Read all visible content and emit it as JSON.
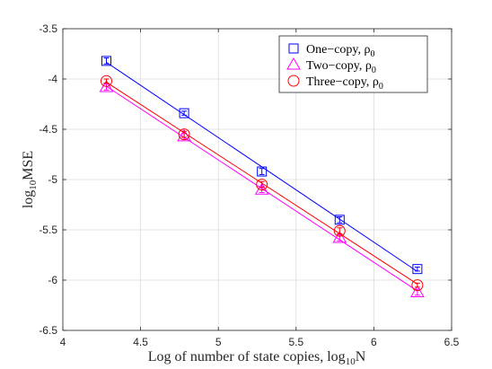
{
  "chart_data": {
    "type": "line",
    "xlabel": "Log of number of state copies, log",
    "xlabel_sub": "10",
    "xlabel_suffix": "N",
    "ylabel": "log",
    "ylabel_sub": "10",
    "ylabel_suffix": "MSE",
    "xlim": [
      4,
      6.5
    ],
    "ylim": [
      -6.5,
      -3.5
    ],
    "xticks": [
      4,
      4.5,
      5,
      5.5,
      6,
      6.5
    ],
    "yticks": [
      -3.5,
      -4,
      -4.5,
      -5,
      -5.5,
      -6,
      -6.5
    ],
    "xtick_labels": [
      "4",
      "4.5",
      "5",
      "5.5",
      "6",
      "6.5"
    ],
    "ytick_labels": [
      "-3.5",
      "-4",
      "-4.5",
      "-5",
      "-5.5",
      "-6",
      "-6.5"
    ],
    "grid": true,
    "legend_position": "top-right",
    "series": [
      {
        "name": "One−copy, ρ",
        "name_sub": "0",
        "marker": "square",
        "color": "#0000ff",
        "x": [
          4.28,
          4.78,
          5.28,
          5.78,
          6.28
        ],
        "y": [
          -3.82,
          -4.34,
          -4.92,
          -5.4,
          -5.89
        ],
        "error": [
          0.03,
          0.02,
          0.03,
          0.03,
          0.02
        ]
      },
      {
        "name": "Two−copy, ρ",
        "name_sub": "0",
        "marker": "triangle",
        "color": "#ff00ff",
        "x": [
          4.28,
          4.78,
          5.28,
          5.78,
          6.28
        ],
        "y": [
          -4.08,
          -4.57,
          -5.1,
          -5.58,
          -6.12
        ],
        "error": [
          0.03,
          0.03,
          0.03,
          0.03,
          0.03
        ]
      },
      {
        "name": "Three−copy, ρ",
        "name_sub": "0",
        "marker": "circle",
        "color": "#ff0000",
        "x": [
          4.28,
          4.78,
          5.28,
          5.78,
          6.28
        ],
        "y": [
          -4.02,
          -4.55,
          -5.05,
          -5.51,
          -6.05
        ],
        "error": [
          0.02,
          0.03,
          0.03,
          0.03,
          0.02
        ]
      }
    ]
  }
}
